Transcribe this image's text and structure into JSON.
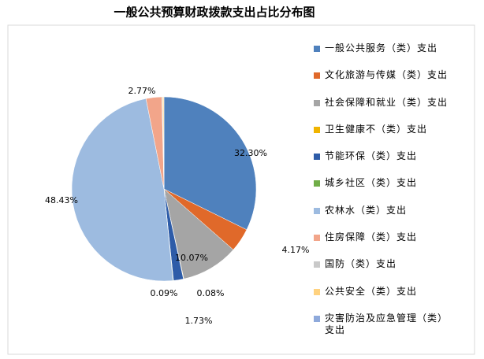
{
  "chart_data": {
    "type": "pie",
    "title": "一般公共预算财政拨款支出占比分布图",
    "categories": [
      "一般公共服务（类）支出",
      "文化旅游与传媒（类）支出",
      "社会保障和就业（类）支出",
      "卫生健康不（类）支出",
      "节能环保（类）支出",
      "城乡社区（类）支出",
      "农林水（类）支出",
      "住房保障（类）支出",
      "国防（类）支出",
      "公共安全（类）支出",
      "灾害防治及应急管理（类）支出"
    ],
    "values": [
      32.3,
      4.17,
      10.07,
      0.08,
      1.73,
      0.09,
      48.43,
      2.77,
      0.12,
      0.2,
      0.04
    ],
    "value_labels": [
      "32.30%",
      "4.17%",
      "10.07%",
      "0.08%",
      "1.73%",
      "0.09%",
      "48.43%",
      "2.77%",
      null,
      null,
      null
    ],
    "colors": [
      "#4f81bd",
      "#e0692a",
      "#a5a5a5",
      "#f0b400",
      "#2e5ca8",
      "#70ad47",
      "#9dbbe0",
      "#f2a58a",
      "#c9c9c9",
      "#ffd27f",
      "#8ea9db"
    ],
    "legend": "right"
  }
}
